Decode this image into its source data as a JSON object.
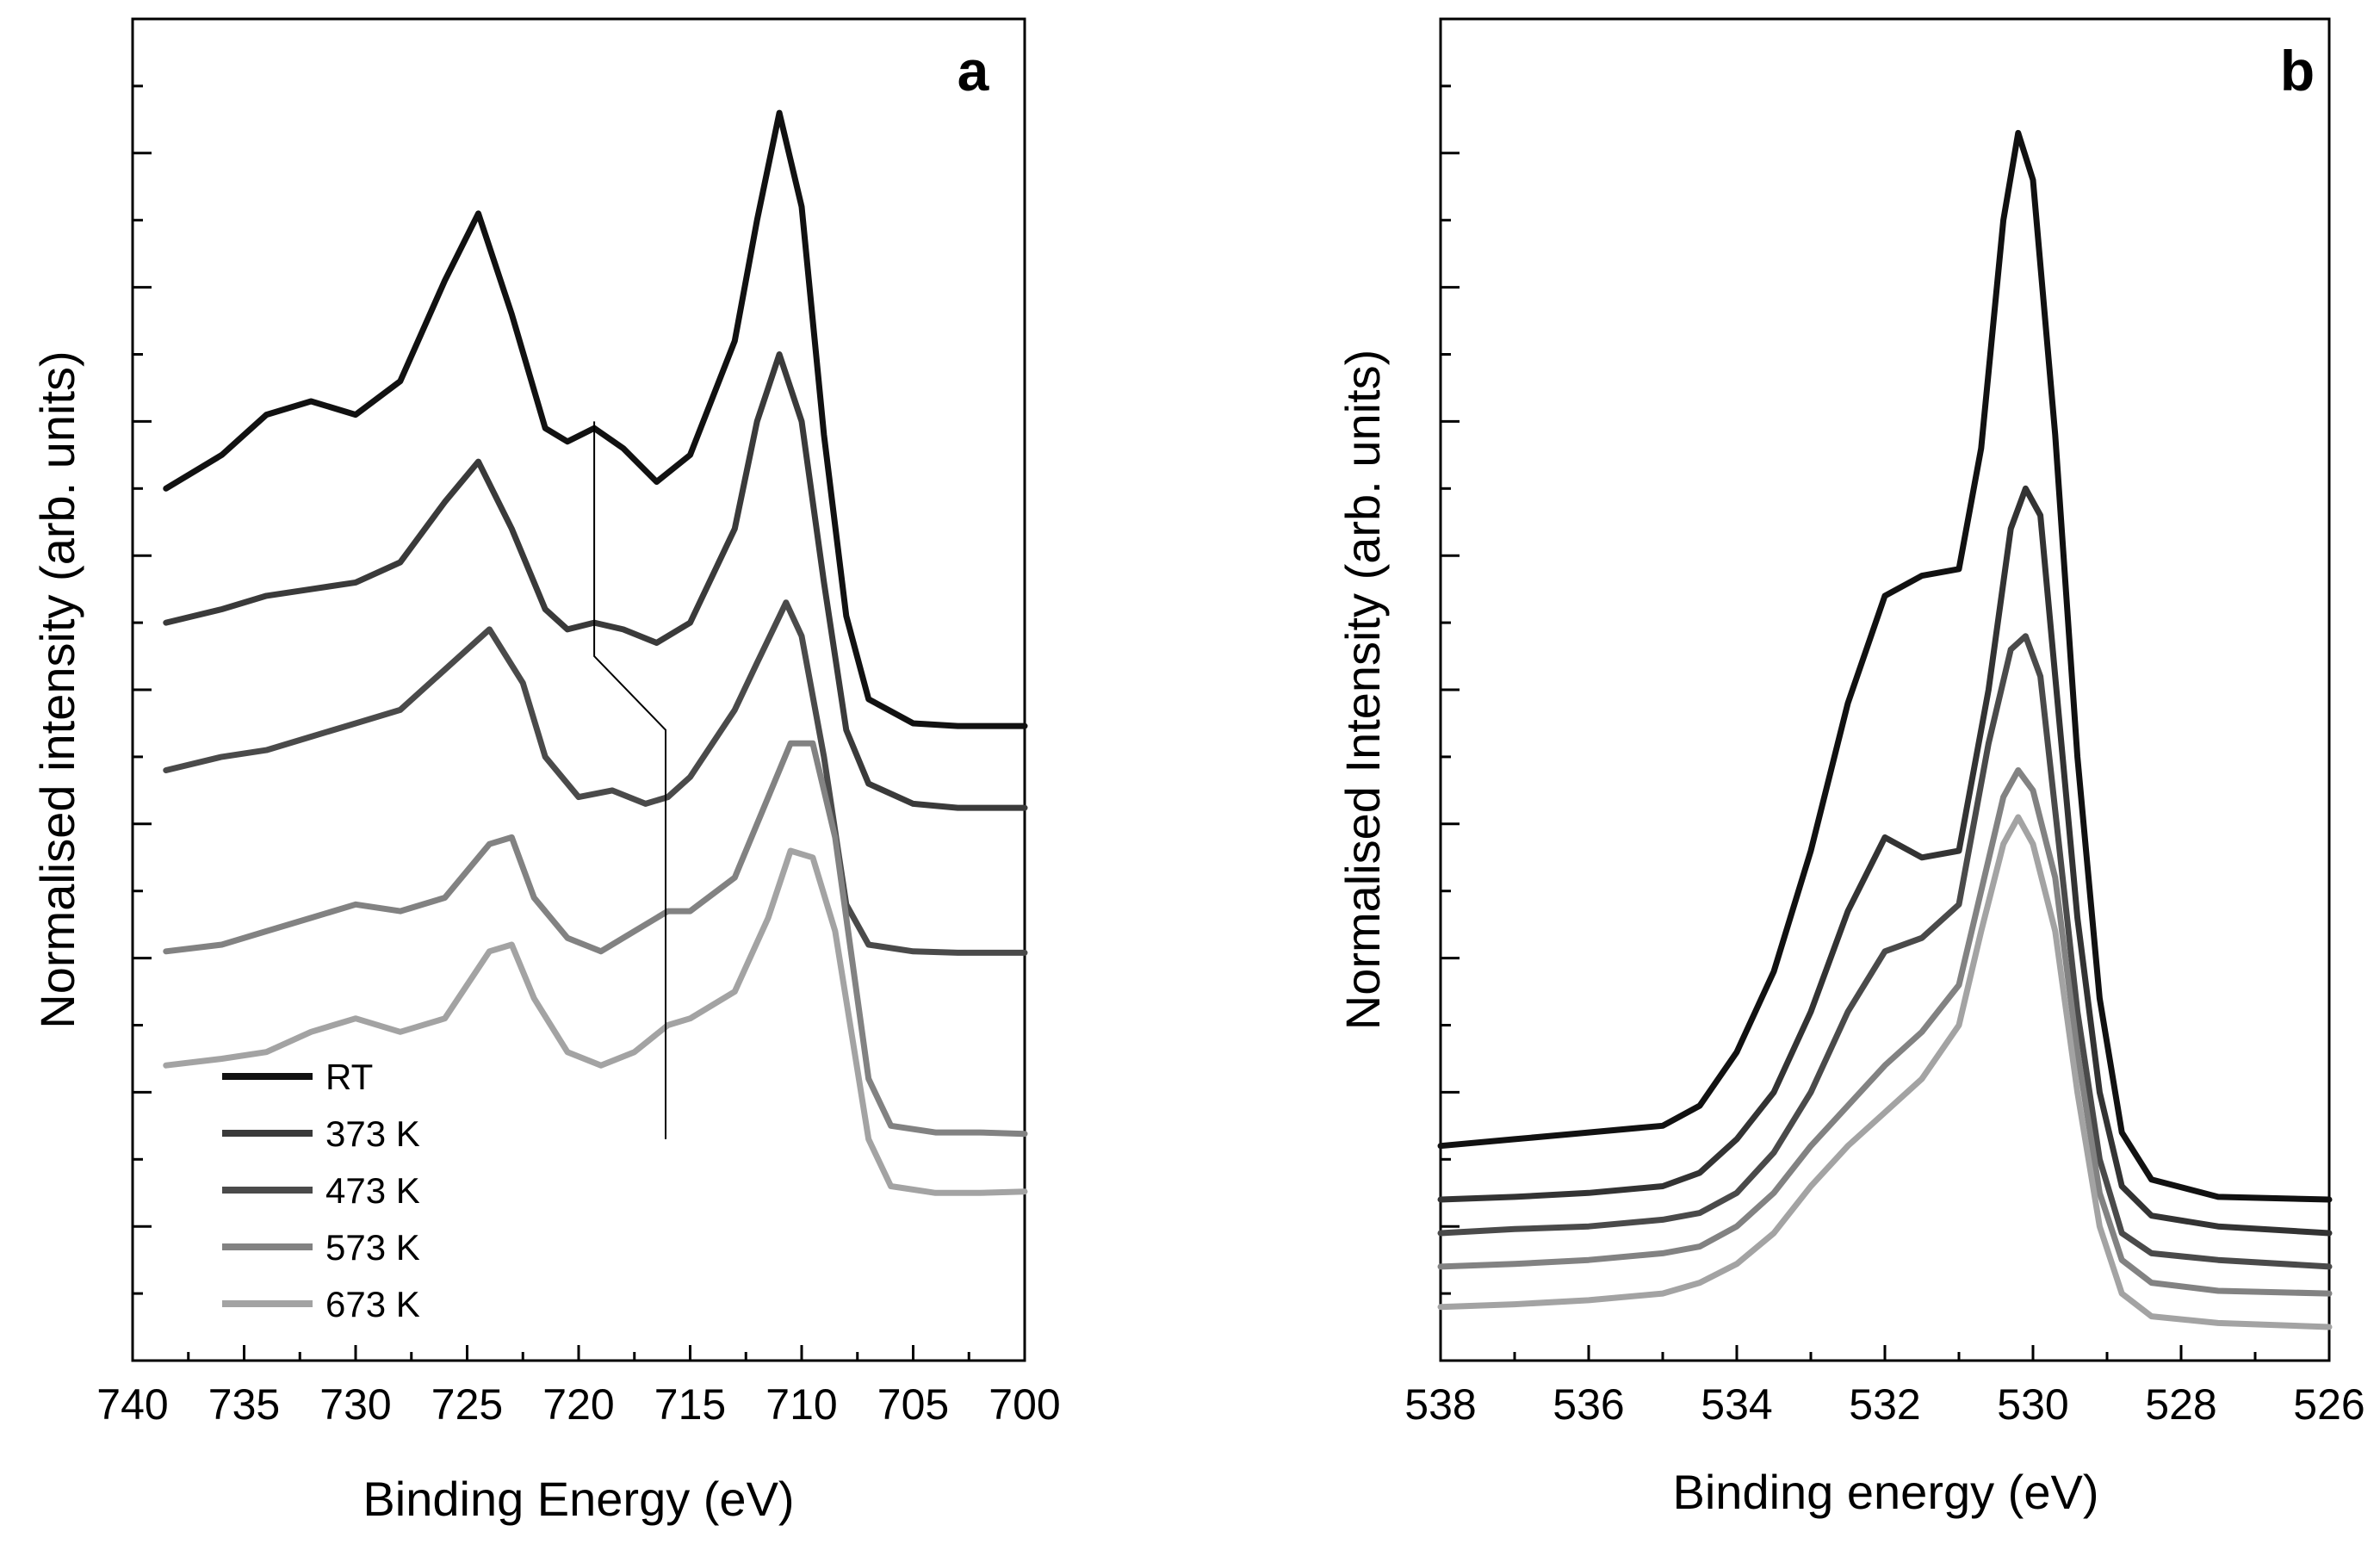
{
  "chart_data": [
    {
      "panel_label": "a",
      "type": "line",
      "xlabel": "Binding Energy (eV)",
      "ylabel": "Normalised intensity (arb. units)",
      "xlim": [
        740,
        700
      ],
      "ylim": [
        0,
        10
      ],
      "x_ticks": [
        "740",
        "735",
        "730",
        "725",
        "720",
        "715",
        "710",
        "705",
        "700"
      ],
      "x_tick_values": [
        740,
        735,
        730,
        725,
        720,
        715,
        710,
        705,
        700
      ],
      "y_tick_values": [
        0.5,
        1,
        1.5,
        2,
        2.5,
        3,
        3.5,
        4,
        4.5,
        5,
        5.5,
        6,
        6.5,
        7,
        7.5,
        8,
        8.5,
        9,
        9.5
      ],
      "legend": {
        "position": "bottom-left"
      },
      "annotation_line": [
        [
          719.3,
          7.0
        ],
        [
          719.3,
          5.25
        ],
        [
          716.1,
          4.7
        ],
        [
          716.1,
          1.65
        ]
      ],
      "series": [
        {
          "name": "RT",
          "color": "#111111",
          "width": 7,
          "points": [
            [
              738.5,
              6.5
            ],
            [
              736,
              6.75
            ],
            [
              734,
              7.05
            ],
            [
              732,
              7.15
            ],
            [
              730,
              7.05
            ],
            [
              728,
              7.3
            ],
            [
              726,
              8.05
            ],
            [
              724.5,
              8.55
            ],
            [
              723,
              7.8
            ],
            [
              721.5,
              6.95
            ],
            [
              720.5,
              6.85
            ],
            [
              719.3,
              6.95
            ],
            [
              718,
              6.8
            ],
            [
              716.5,
              6.55
            ],
            [
              715,
              6.75
            ],
            [
              713,
              7.6
            ],
            [
              712,
              8.5
            ],
            [
              711,
              9.3
            ],
            [
              710,
              8.6
            ],
            [
              709,
              6.9
            ],
            [
              708,
              5.55
            ],
            [
              707,
              4.93
            ],
            [
              705,
              4.75
            ],
            [
              703,
              4.73
            ],
            [
              700,
              4.73
            ]
          ]
        },
        {
          "name": "373 K",
          "color": "#3a3a3a",
          "width": 7,
          "points": [
            [
              738.5,
              5.5
            ],
            [
              736,
              5.6
            ],
            [
              734,
              5.7
            ],
            [
              732,
              5.75
            ],
            [
              730,
              5.8
            ],
            [
              728,
              5.95
            ],
            [
              726,
              6.4
            ],
            [
              724.5,
              6.7
            ],
            [
              723,
              6.2
            ],
            [
              721.5,
              5.6
            ],
            [
              720.5,
              5.45
            ],
            [
              719.3,
              5.5
            ],
            [
              718,
              5.45
            ],
            [
              716.5,
              5.35
            ],
            [
              715,
              5.5
            ],
            [
              713,
              6.2
            ],
            [
              712,
              7.0
            ],
            [
              711,
              7.5
            ],
            [
              710,
              7.0
            ],
            [
              709,
              5.8
            ],
            [
              708,
              4.7
            ],
            [
              707,
              4.3
            ],
            [
              705,
              4.15
            ],
            [
              703,
              4.12
            ],
            [
              700,
              4.12
            ]
          ]
        },
        {
          "name": "473 K",
          "color": "#4a4a4a",
          "width": 7,
          "points": [
            [
              738.5,
              4.4
            ],
            [
              736,
              4.5
            ],
            [
              734,
              4.55
            ],
            [
              732,
              4.65
            ],
            [
              730,
              4.75
            ],
            [
              728,
              4.85
            ],
            [
              726,
              5.15
            ],
            [
              724,
              5.45
            ],
            [
              722.5,
              5.05
            ],
            [
              721.5,
              4.5
            ],
            [
              720,
              4.2
            ],
            [
              718.5,
              4.25
            ],
            [
              717,
              4.15
            ],
            [
              716,
              4.2
            ],
            [
              715,
              4.35
            ],
            [
              713,
              4.85
            ],
            [
              712,
              5.2
            ],
            [
              710.7,
              5.65
            ],
            [
              710,
              5.4
            ],
            [
              709,
              4.5
            ],
            [
              708,
              3.4
            ],
            [
              707,
              3.1
            ],
            [
              705,
              3.05
            ],
            [
              703,
              3.04
            ],
            [
              700,
              3.04
            ]
          ]
        },
        {
          "name": "573 K",
          "color": "#828282",
          "width": 7,
          "points": [
            [
              738.5,
              3.05
            ],
            [
              736,
              3.1
            ],
            [
              734,
              3.2
            ],
            [
              732,
              3.3
            ],
            [
              730,
              3.4
            ],
            [
              728,
              3.35
            ],
            [
              726,
              3.45
            ],
            [
              724,
              3.85
            ],
            [
              723,
              3.9
            ],
            [
              722,
              3.45
            ],
            [
              720.5,
              3.15
            ],
            [
              719,
              3.05
            ],
            [
              717.5,
              3.2
            ],
            [
              716,
              3.35
            ],
            [
              715,
              3.35
            ],
            [
              713,
              3.6
            ],
            [
              712,
              4.0
            ],
            [
              710.5,
              4.6
            ],
            [
              709.5,
              4.6
            ],
            [
              708.5,
              3.9
            ],
            [
              707,
              2.1
            ],
            [
              706,
              1.75
            ],
            [
              704,
              1.7
            ],
            [
              702,
              1.7
            ],
            [
              700,
              1.69
            ]
          ]
        },
        {
          "name": "673 K",
          "color": "#a3a3a3",
          "width": 7,
          "points": [
            [
              738.5,
              2.2
            ],
            [
              736,
              2.25
            ],
            [
              734,
              2.3
            ],
            [
              732,
              2.45
            ],
            [
              730,
              2.55
            ],
            [
              728,
              2.45
            ],
            [
              726,
              2.55
            ],
            [
              724,
              3.05
            ],
            [
              723,
              3.1
            ],
            [
              722,
              2.7
            ],
            [
              720.5,
              2.3
            ],
            [
              719,
              2.2
            ],
            [
              717.5,
              2.3
            ],
            [
              716,
              2.5
            ],
            [
              715,
              2.55
            ],
            [
              713,
              2.75
            ],
            [
              711.5,
              3.3
            ],
            [
              710.5,
              3.8
            ],
            [
              709.5,
              3.75
            ],
            [
              708.5,
              3.2
            ],
            [
              707,
              1.65
            ],
            [
              706,
              1.3
            ],
            [
              704,
              1.25
            ],
            [
              702,
              1.25
            ],
            [
              700,
              1.26
            ]
          ]
        }
      ],
      "legend_entries": [
        "RT",
        "373 K",
        "473 K",
        "573 K",
        "673 K"
      ]
    },
    {
      "panel_label": "b",
      "type": "line",
      "xlabel": "Binding energy (eV)",
      "ylabel": "Normalised Intensity (arb. units)",
      "xlim": [
        538,
        526
      ],
      "ylim": [
        0,
        10
      ],
      "x_ticks": [
        "538",
        "536",
        "534",
        "532",
        "530",
        "528",
        "526"
      ],
      "x_tick_values": [
        538,
        536,
        534,
        532,
        530,
        528,
        526
      ],
      "y_tick_values": [
        0.5,
        1,
        1.5,
        2,
        2.5,
        3,
        3.5,
        4,
        4.5,
        5,
        5.5,
        6,
        6.5,
        7,
        7.5,
        8,
        8.5,
        9,
        9.5
      ],
      "series": [
        {
          "name": "RT",
          "color": "#111111",
          "width": 7,
          "points": [
            [
              538,
              1.6
            ],
            [
              537,
              1.65
            ],
            [
              536,
              1.7
            ],
            [
              535,
              1.75
            ],
            [
              534.5,
              1.9
            ],
            [
              534,
              2.3
            ],
            [
              533.5,
              2.9
            ],
            [
              533,
              3.8
            ],
            [
              532.5,
              4.9
            ],
            [
              532,
              5.7
            ],
            [
              531.5,
              5.85
            ],
            [
              531,
              5.9
            ],
            [
              530.7,
              6.8
            ],
            [
              530.4,
              8.5
            ],
            [
              530.2,
              9.15
            ],
            [
              530,
              8.8
            ],
            [
              529.7,
              6.9
            ],
            [
              529.4,
              4.5
            ],
            [
              529.1,
              2.7
            ],
            [
              528.8,
              1.7
            ],
            [
              528.4,
              1.35
            ],
            [
              527.5,
              1.22
            ],
            [
              526,
              1.2
            ]
          ]
        },
        {
          "name": "373 K",
          "color": "#333333",
          "width": 7,
          "points": [
            [
              538,
              1.2
            ],
            [
              537,
              1.22
            ],
            [
              536,
              1.25
            ],
            [
              535,
              1.3
            ],
            [
              534.5,
              1.4
            ],
            [
              534,
              1.65
            ],
            [
              533.5,
              2.0
            ],
            [
              533,
              2.6
            ],
            [
              532.5,
              3.35
            ],
            [
              532,
              3.9
            ],
            [
              531.5,
              3.75
            ],
            [
              531,
              3.8
            ],
            [
              530.6,
              5.0
            ],
            [
              530.3,
              6.2
            ],
            [
              530.1,
              6.5
            ],
            [
              529.9,
              6.3
            ],
            [
              529.7,
              5.1
            ],
            [
              529.4,
              3.3
            ],
            [
              529.1,
              2.0
            ],
            [
              528.8,
              1.3
            ],
            [
              528.4,
              1.08
            ],
            [
              527.5,
              1.0
            ],
            [
              526,
              0.95
            ]
          ]
        },
        {
          "name": "473 K",
          "color": "#4a4a4a",
          "width": 7,
          "points": [
            [
              538,
              0.95
            ],
            [
              537,
              0.98
            ],
            [
              536,
              1.0
            ],
            [
              535,
              1.05
            ],
            [
              534.5,
              1.1
            ],
            [
              534,
              1.25
            ],
            [
              533.5,
              1.55
            ],
            [
              533,
              2.0
            ],
            [
              532.5,
              2.6
            ],
            [
              532,
              3.05
            ],
            [
              531.5,
              3.15
            ],
            [
              531,
              3.4
            ],
            [
              530.6,
              4.6
            ],
            [
              530.3,
              5.3
            ],
            [
              530.1,
              5.4
            ],
            [
              529.9,
              5.1
            ],
            [
              529.7,
              4.1
            ],
            [
              529.4,
              2.6
            ],
            [
              529.1,
              1.5
            ],
            [
              528.8,
              0.95
            ],
            [
              528.4,
              0.8
            ],
            [
              527.5,
              0.75
            ],
            [
              526,
              0.7
            ]
          ]
        },
        {
          "name": "573 K",
          "color": "#828282",
          "width": 7,
          "points": [
            [
              538,
              0.7
            ],
            [
              537,
              0.72
            ],
            [
              536,
              0.75
            ],
            [
              535,
              0.8
            ],
            [
              534.5,
              0.85
            ],
            [
              534,
              1.0
            ],
            [
              533.5,
              1.25
            ],
            [
              533,
              1.6
            ],
            [
              532.5,
              1.9
            ],
            [
              532,
              2.2
            ],
            [
              531.5,
              2.45
            ],
            [
              531,
              2.8
            ],
            [
              530.7,
              3.5
            ],
            [
              530.4,
              4.2
            ],
            [
              530.2,
              4.4
            ],
            [
              530,
              4.25
            ],
            [
              529.7,
              3.6
            ],
            [
              529.4,
              2.3
            ],
            [
              529.1,
              1.25
            ],
            [
              528.8,
              0.75
            ],
            [
              528.4,
              0.58
            ],
            [
              527.5,
              0.52
            ],
            [
              526,
              0.5
            ]
          ]
        },
        {
          "name": "673 K",
          "color": "#a3a3a3",
          "width": 7,
          "points": [
            [
              538,
              0.4
            ],
            [
              537,
              0.42
            ],
            [
              536,
              0.45
            ],
            [
              535,
              0.5
            ],
            [
              534.5,
              0.58
            ],
            [
              534,
              0.72
            ],
            [
              533.5,
              0.95
            ],
            [
              533,
              1.3
            ],
            [
              532.5,
              1.6
            ],
            [
              532,
              1.85
            ],
            [
              531.5,
              2.1
            ],
            [
              531,
              2.5
            ],
            [
              530.7,
              3.2
            ],
            [
              530.4,
              3.85
            ],
            [
              530.2,
              4.05
            ],
            [
              530,
              3.85
            ],
            [
              529.7,
              3.2
            ],
            [
              529.4,
              2.0
            ],
            [
              529.1,
              1.0
            ],
            [
              528.8,
              0.5
            ],
            [
              528.4,
              0.33
            ],
            [
              527.5,
              0.28
            ],
            [
              526,
              0.25
            ]
          ]
        }
      ]
    }
  ]
}
